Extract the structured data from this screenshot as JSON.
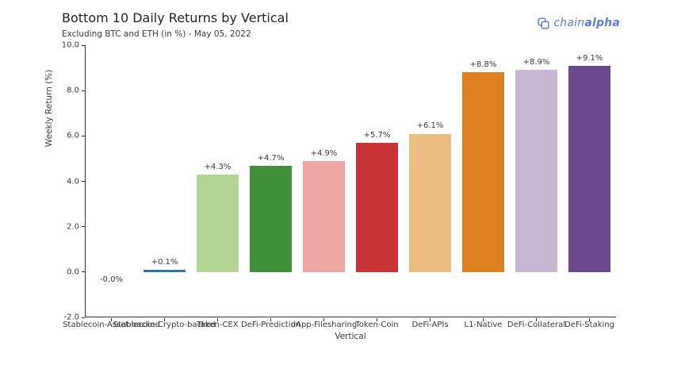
{
  "header": {
    "logo": {
      "text_regular": "chain",
      "text_bold": "alpha",
      "color": "#5e7ce2"
    }
  },
  "chart_data": {
    "type": "bar",
    "title": "Bottom 10 Daily Returns by Vertical",
    "subtitle": "Excluding BTC and ETH (in %) - May 05, 2022",
    "xlabel": "Vertical",
    "ylabel": "Weekly Return (%)",
    "ylim": [
      -2.0,
      10.0
    ],
    "yticks": [
      -2.0,
      0.0,
      2.0,
      4.0,
      6.0,
      8.0,
      10.0
    ],
    "grid": false,
    "legend": "none",
    "categories": [
      "Stablecoin-Asset-backed",
      "Stablecoin-Crypto-backed",
      "Token-CEX",
      "DeFi-Prediction",
      "dApp-Filesharing",
      "Token-Coin",
      "DeFi-APIs",
      "L1-Native",
      "DeFi-Collateral",
      "DeFi-Staking"
    ],
    "values": [
      -0.0,
      0.1,
      4.3,
      4.7,
      4.9,
      5.7,
      6.1,
      8.8,
      8.9,
      9.1
    ],
    "value_labels": [
      "-0.0%",
      "+0.1%",
      "+4.3%",
      "+4.7%",
      "+4.9%",
      "+5.7%",
      "+6.1%",
      "+8.8%",
      "+8.9%",
      "+9.1%"
    ],
    "bar_colors": [
      "#aeccdc",
      "#3274a1",
      "#b3d495",
      "#40913a",
      "#efa6a5",
      "#ca3335",
      "#ebbd81",
      "#df8020",
      "#c9b7d2",
      "#6a498f"
    ],
    "axis_color": "#333333",
    "text_color": "#3a3a3a"
  }
}
